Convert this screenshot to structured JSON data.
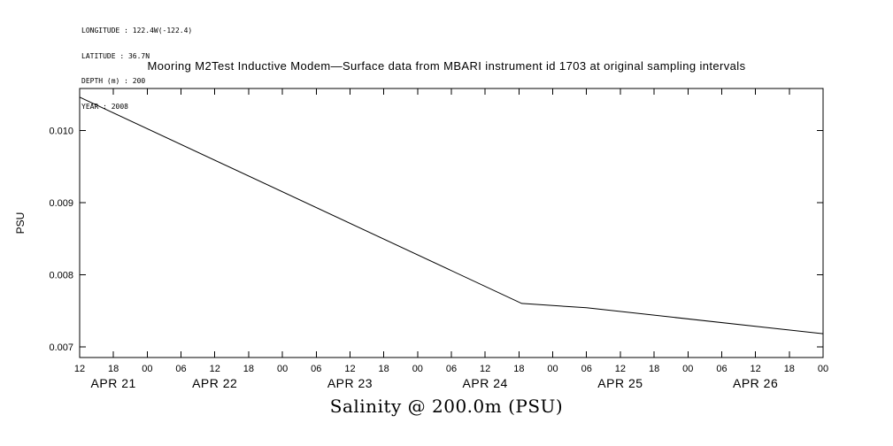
{
  "meta_block": {
    "longitude": "LONGITUDE : 122.4W(-122.4)",
    "latitude": "LATITUDE : 36.7N",
    "depth": "DEPTH (m) : 200",
    "year": "YEAR : 2008"
  },
  "chart_data": {
    "type": "line",
    "title": "Mooring M2Test Inductive Modem—Surface data from MBARI instrument id 1703 at original sampling intervals",
    "ylabel": "PSU",
    "xlabel": "Salinity @ 200.0m (PSU)",
    "ylim": [
      0.00685,
      0.01058
    ],
    "yticks": [
      {
        "value": 0.007,
        "label": "0.007"
      },
      {
        "value": 0.008,
        "label": "0.008"
      },
      {
        "value": 0.009,
        "label": "0.009"
      },
      {
        "value": 0.01,
        "label": "0.010"
      }
    ],
    "x_axis": {
      "unit": "hour of day",
      "start": "APR 21 12:00",
      "end": "APR 27 00:00",
      "hours_span": 132,
      "tick_interval_hours": 6,
      "tick_labels": [
        "12",
        "18",
        "00",
        "06",
        "12",
        "18",
        "00",
        "06",
        "12",
        "18",
        "00",
        "06",
        "12",
        "18",
        "00",
        "06",
        "12",
        "18",
        "00",
        "06",
        "12",
        "18",
        "00"
      ]
    },
    "date_labels": [
      {
        "label": "APR 21",
        "center_hour": 6
      },
      {
        "label": "APR 22",
        "center_hour": 24
      },
      {
        "label": "APR 23",
        "center_hour": 48
      },
      {
        "label": "APR 24",
        "center_hour": 72
      },
      {
        "label": "APR 25",
        "center_hour": 96
      },
      {
        "label": "APR 26",
        "center_hour": 120
      }
    ],
    "series": [
      {
        "name": "Salinity @ 200.0m (PSU)",
        "x_hours_from_start": [
          0,
          78.5,
          90,
          132
        ],
        "values_psu": [
          0.01046,
          0.0076,
          0.00754,
          0.00718
        ]
      }
    ],
    "grid": false,
    "legend": false,
    "line_color": "#000000",
    "background_color": "#ffffff"
  }
}
